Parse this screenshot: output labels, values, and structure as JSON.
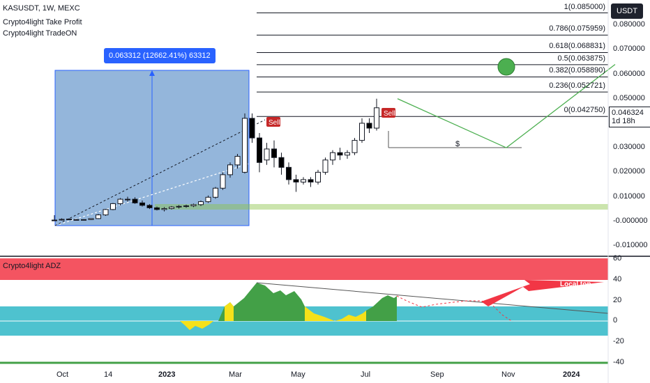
{
  "header": {
    "symbol_line": "KASUSDT, 1W, MEXC",
    "indicator_1": "Crypto4light Take Profit",
    "indicator_2": "Crypto4light TradeON"
  },
  "currency_badge": "USDT",
  "measure_tooltip": "0.063312 (12662.41%) 63312",
  "current_price": {
    "price": "0.046324",
    "countdown": "1d 18h"
  },
  "fib_levels": [
    {
      "label": "1(0.085000)",
      "value": 0.085
    },
    {
      "label": "0.786(0.075959)",
      "value": 0.075959
    },
    {
      "label": "0.618(0.068831)",
      "value": 0.068831
    },
    {
      "label": "0.5(0.063875)",
      "value": 0.063875
    },
    {
      "label": "0.382(0.058890)",
      "value": 0.05889
    },
    {
      "label": "0.236(0.052721)",
      "value": 0.052721
    },
    {
      "label": "0(0.042750)",
      "value": 0.04275
    }
  ],
  "price_axis_ticks": [
    "0.080000",
    "0.070000",
    "0.060000",
    "0.050000",
    "0.040000",
    "0.030000",
    "0.020000",
    "0.010000",
    "-0.000000",
    "-0.010000"
  ],
  "indicator_panel": {
    "name": "Crypto4light ADZ",
    "ticks": [
      "60",
      "40",
      "20",
      "0",
      "-20",
      "-40"
    ],
    "annotation": "Local top"
  },
  "sell_markers": [
    "Sell",
    "Sell"
  ],
  "dollar_marker": "$",
  "time_axis": [
    "Oct",
    "14",
    "2023",
    "Mar",
    "May",
    "Jul",
    "Sep",
    "Nov",
    "2024"
  ],
  "colors": {
    "bull": "#ffffff",
    "bear": "#000000",
    "fib_line": "#131722",
    "measure_box": "#5b8fc7",
    "red_zone": "#f23645",
    "cyan_zone": "#22b3c3",
    "green_fill": "#43a047",
    "yellow_fill": "#f5e11a",
    "green_projection": "#4caf50",
    "sell_marker": "#c62828"
  },
  "chart_data": {
    "type": "candlestick",
    "timeframe": "1W",
    "candles": [
      {
        "o": 0.0005,
        "h": 0.0025,
        "l": 0.0002,
        "c": 0.0002
      },
      {
        "o": 0.0005,
        "h": 0.0012,
        "l": 0.0003,
        "c": 0.0008
      },
      {
        "o": 0.0008,
        "h": 0.0012,
        "l": 0.0006,
        "c": 0.0009
      },
      {
        "o": 0.0007,
        "h": 0.0009,
        "l": 0.0004,
        "c": 0.0004
      },
      {
        "o": 0.0006,
        "h": 0.0008,
        "l": 0.0005,
        "c": 0.0007
      },
      {
        "o": 0.0007,
        "h": 0.0012,
        "l": 0.0005,
        "c": 0.0011
      },
      {
        "o": 0.0011,
        "h": 0.003,
        "l": 0.0009,
        "c": 0.0026
      },
      {
        "o": 0.0026,
        "h": 0.005,
        "l": 0.0022,
        "c": 0.0048
      },
      {
        "o": 0.0048,
        "h": 0.0075,
        "l": 0.0045,
        "c": 0.0072
      },
      {
        "o": 0.0072,
        "h": 0.0095,
        "l": 0.0065,
        "c": 0.009
      },
      {
        "o": 0.009,
        "h": 0.01,
        "l": 0.008,
        "c": 0.009
      },
      {
        "o": 0.009,
        "h": 0.0098,
        "l": 0.0071,
        "c": 0.0075
      },
      {
        "o": 0.0075,
        "h": 0.0085,
        "l": 0.006,
        "c": 0.0065
      },
      {
        "o": 0.0065,
        "h": 0.007,
        "l": 0.005,
        "c": 0.0055
      },
      {
        "o": 0.0055,
        "h": 0.006,
        "l": 0.0044,
        "c": 0.0048
      },
      {
        "o": 0.0048,
        "h": 0.0058,
        "l": 0.004,
        "c": 0.0052
      },
      {
        "o": 0.0052,
        "h": 0.0062,
        "l": 0.0048,
        "c": 0.0058
      },
      {
        "o": 0.0058,
        "h": 0.0066,
        "l": 0.0052,
        "c": 0.0061
      },
      {
        "o": 0.0061,
        "h": 0.0068,
        "l": 0.0055,
        "c": 0.0063
      },
      {
        "o": 0.0063,
        "h": 0.0072,
        "l": 0.0058,
        "c": 0.0068
      },
      {
        "o": 0.0068,
        "h": 0.0085,
        "l": 0.0062,
        "c": 0.008
      },
      {
        "o": 0.008,
        "h": 0.0105,
        "l": 0.0075,
        "c": 0.0098
      },
      {
        "o": 0.0098,
        "h": 0.014,
        "l": 0.0092,
        "c": 0.0135
      },
      {
        "o": 0.0135,
        "h": 0.02,
        "l": 0.0128,
        "c": 0.019
      },
      {
        "o": 0.019,
        "h": 0.024,
        "l": 0.0178,
        "c": 0.023
      },
      {
        "o": 0.023,
        "h": 0.0275,
        "l": 0.0215,
        "c": 0.0265
      },
      {
        "o": 0.02,
        "h": 0.044,
        "l": 0.0195,
        "c": 0.042
      },
      {
        "o": 0.042,
        "h": 0.044,
        "l": 0.032,
        "c": 0.034
      },
      {
        "o": 0.034,
        "h": 0.036,
        "l": 0.02,
        "c": 0.024
      },
      {
        "o": 0.025,
        "h": 0.032,
        "l": 0.023,
        "c": 0.0295
      },
      {
        "o": 0.0295,
        "h": 0.033,
        "l": 0.022,
        "c": 0.026
      },
      {
        "o": 0.026,
        "h": 0.028,
        "l": 0.019,
        "c": 0.022
      },
      {
        "o": 0.022,
        "h": 0.024,
        "l": 0.015,
        "c": 0.017
      },
      {
        "o": 0.017,
        "h": 0.019,
        "l": 0.012,
        "c": 0.016
      },
      {
        "o": 0.016,
        "h": 0.018,
        "l": 0.015,
        "c": 0.017
      },
      {
        "o": 0.017,
        "h": 0.018,
        "l": 0.014,
        "c": 0.016
      },
      {
        "o": 0.016,
        "h": 0.021,
        "l": 0.015,
        "c": 0.02
      },
      {
        "o": 0.02,
        "h": 0.026,
        "l": 0.019,
        "c": 0.025
      },
      {
        "o": 0.025,
        "h": 0.029,
        "l": 0.023,
        "c": 0.028
      },
      {
        "o": 0.028,
        "h": 0.03,
        "l": 0.025,
        "c": 0.027
      },
      {
        "o": 0.027,
        "h": 0.029,
        "l": 0.0255,
        "c": 0.028
      },
      {
        "o": 0.028,
        "h": 0.034,
        "l": 0.027,
        "c": 0.033
      },
      {
        "o": 0.033,
        "h": 0.042,
        "l": 0.032,
        "c": 0.04
      },
      {
        "o": 0.04,
        "h": 0.042,
        "l": 0.036,
        "c": 0.038
      },
      {
        "o": 0.038,
        "h": 0.05,
        "l": 0.037,
        "c": 0.0463
      }
    ],
    "projection_path": [
      {
        "week": 44,
        "price": 0.05
      },
      {
        "week": 52,
        "price": 0.03
      },
      {
        "week": 60,
        "price": 0.064
      }
    ],
    "price_range": [
      -0.012,
      0.088
    ],
    "indicator_range": [
      -40,
      60
    ]
  }
}
